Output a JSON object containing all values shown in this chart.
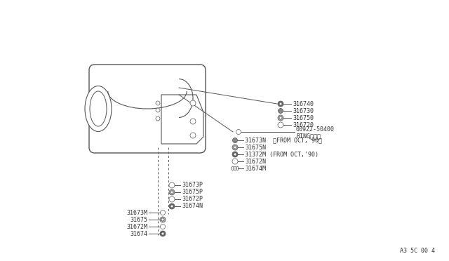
{
  "bg_color": "#ffffff",
  "line_color": "#555555",
  "text_color": "#333333",
  "ref_code": "A3 5C 00 4",
  "top_right_parts": [
    {
      "label": "316740"
    },
    {
      "label": "316730"
    },
    {
      "label": "316750"
    },
    {
      "label": "316720"
    }
  ],
  "ring_label": "00922-50400",
  "ring_sublabel": "RINGリング",
  "mid_right_parts": [
    {
      "label": "31673N  〈FROM OCT,'90〉"
    },
    {
      "label": "31675N"
    },
    {
      "label": "31372M (FROM OCT,'90)"
    },
    {
      "label": "31672N"
    },
    {
      "label": "31674M"
    }
  ],
  "mid_bot_parts": [
    {
      "label": "31673P"
    },
    {
      "label": "31675P"
    },
    {
      "label": "31672P"
    },
    {
      "label": "31674N"
    }
  ],
  "bot_left_parts": [
    {
      "label": "31673M"
    },
    {
      "label": "31675"
    },
    {
      "label": "31672M"
    },
    {
      "label": "31674"
    }
  ]
}
